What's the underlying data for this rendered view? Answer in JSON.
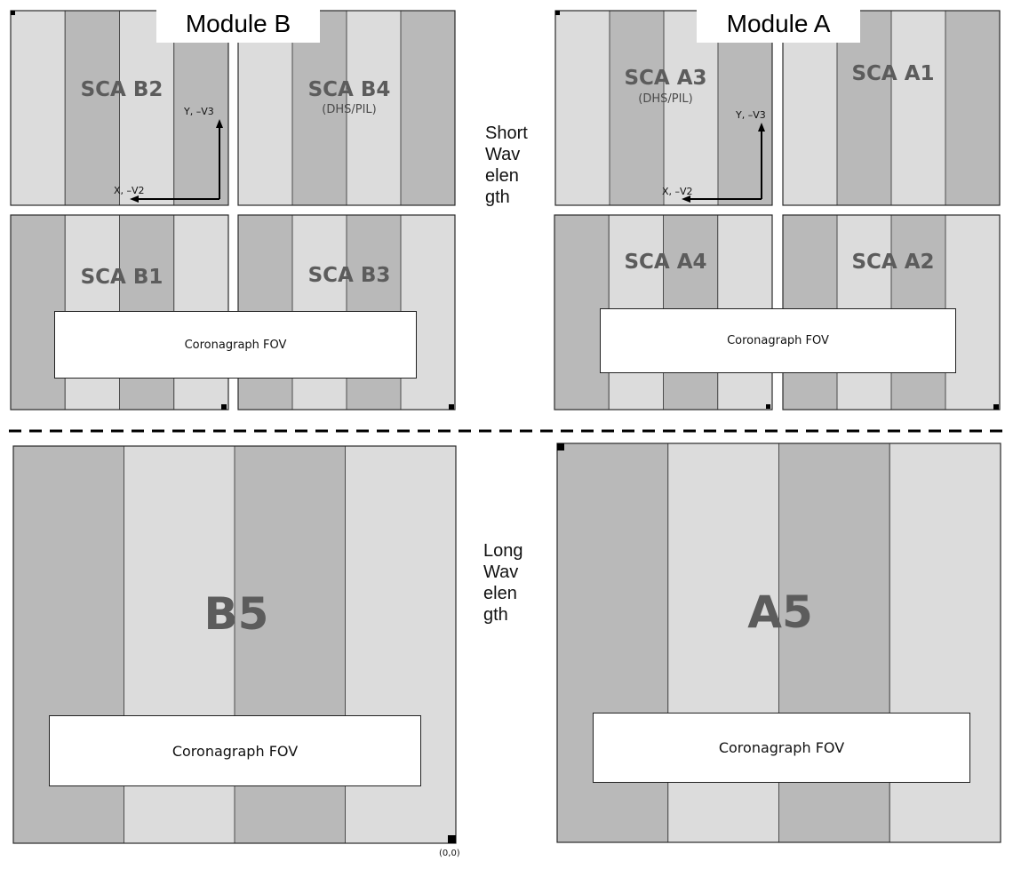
{
  "module_b": {
    "label": "Module B"
  },
  "module_a": {
    "label": "Module A"
  },
  "bands": {
    "short": "Short Wavelength",
    "long": "Long Wavelength"
  },
  "colors": {
    "light_stripe": "#dcdcdc",
    "dark_stripe": "#b9b9b9",
    "label_text": "#5c5c5c",
    "divider": "#000000"
  },
  "scas": {
    "b2": {
      "name": "SCA B2",
      "sub": ""
    },
    "b4": {
      "name": "SCA B4",
      "sub": "(DHS/PIL)"
    },
    "b1": {
      "name": "SCA B1",
      "sub": ""
    },
    "b3": {
      "name": "SCA B3",
      "sub": ""
    },
    "a3": {
      "name": "SCA A3",
      "sub": "(DHS/PIL)"
    },
    "a1": {
      "name": "SCA A1",
      "sub": ""
    },
    "a4": {
      "name": "SCA A4",
      "sub": ""
    },
    "a2": {
      "name": "SCA A2",
      "sub": ""
    },
    "b5": {
      "name": "B5"
    },
    "a5": {
      "name": "A5"
    }
  },
  "coronagraph": {
    "sw_b": "Coronagraph FOV",
    "sw_a": "Coronagraph FOV",
    "lw_b": "Coronagraph FOV",
    "lw_a": "Coronagraph FOV"
  },
  "axes": {
    "b": {
      "y_label": "Y, –V3",
      "x_label": "X, –V2"
    },
    "a": {
      "y_label": "Y, –V3",
      "x_label": "X, –V2"
    }
  },
  "origin_label": "(0,0)"
}
